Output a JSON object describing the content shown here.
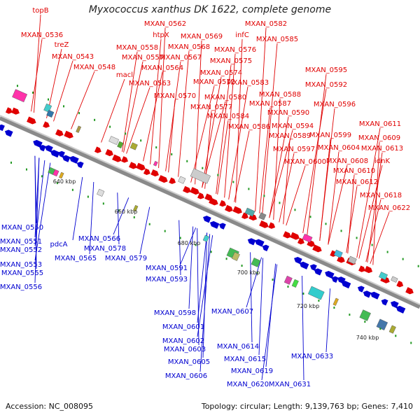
{
  "title": "Myxococcus xanthus DK 1622, complete genome",
  "footer": {
    "accession": "Accession: NC_008095",
    "summary": "Topology: circular; Length: 9,139,763 bp; Genes: 7,410"
  },
  "colors": {
    "forward": "#e00000",
    "reverse": "#0000d0",
    "backbone": "#888888",
    "rna": "#229922"
  },
  "scale_ticks": [
    "640 kbp",
    "660 kbp",
    "680 kbp",
    "700 kbp",
    "720 kbp",
    "740 kbp"
  ],
  "top_labels": [
    "topB",
    "MXAN_0536",
    "treZ",
    "MXAN_0543",
    "MXAN_0548",
    "MXAN_0562",
    "htpX",
    "MXAN_0558",
    "MXAN_0557",
    "macl",
    "MXAN_0569",
    "MXAN_0568",
    "MXAN_0567",
    "MXAN_0564",
    "MXAN_0563",
    "infC",
    "MXAN_0576",
    "MXAN_0575",
    "MXAN_0574",
    "MXAN_0572",
    "MXAN_0570",
    "MXAN_0582",
    "MXAN_0585",
    "MXAN_0583",
    "MXAN_0580",
    "MXAN_0577",
    "MXAN_0584",
    "MXAN_0586",
    "MXAN_0595",
    "MXAN_0592",
    "MXAN_0588",
    "MXAN_0587",
    "MXAN_0596",
    "MXAN_0590",
    "MXAN_0594",
    "MXAN_0589",
    "MXAN_0599",
    "MXAN_0597",
    "MXAN_0600",
    "MXAN_0611",
    "MXAN_0609",
    "MXAN_0604",
    "MXAN_0613",
    "MXAN_0608",
    "idnK",
    "MXAN_0610",
    "MXAN_0612",
    "MXAN_0618",
    "MXAN_0622"
  ],
  "bottom_labels": [
    "MXAN_0550",
    "MXAN_0551",
    "MXAN_0552",
    "MXAN_0553",
    "MXAN_0555",
    "MXAN_0556",
    "pdcA",
    "MXAN_0566",
    "MXAN_0578",
    "MXAN_0565",
    "MXAN_0579",
    "MXAN_0591",
    "MXAN_0593",
    "MXAN_0598",
    "MXAN_0601",
    "MXAN_0602",
    "MXAN_0603",
    "MXAN_0605",
    "MXAN_0606",
    "MXAN_0607",
    "MXAN_0614",
    "MXAN_0615",
    "MXAN_0619",
    "MXAN_0620",
    "MXAN_0631",
    "MXAN_0633"
  ]
}
